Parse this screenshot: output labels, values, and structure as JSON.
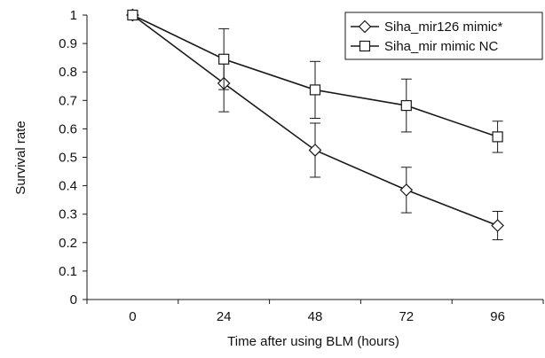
{
  "chart_data": {
    "type": "line",
    "title": "",
    "xlabel": "Time after using BLM (hours)",
    "ylabel": "Survival rate",
    "x": [
      0,
      24,
      48,
      72,
      96
    ],
    "x_tick_labels": [
      "0",
      "24",
      "48",
      "72",
      "96"
    ],
    "ylim": [
      0,
      1
    ],
    "y_ticks": [
      0,
      0.1,
      0.2,
      0.3,
      0.4,
      0.5,
      0.6,
      0.7,
      0.8,
      0.9,
      1
    ],
    "y_tick_labels": [
      "0",
      "0.1",
      "0.2",
      "0.3",
      "0.4",
      "0.5",
      "0.6",
      "0.7",
      "0.8",
      "0.9",
      "1"
    ],
    "grid": false,
    "legend_position": "top-right",
    "series": [
      {
        "name": "Siha_mir126 mimic*",
        "marker": "diamond",
        "values": [
          1.0,
          0.76,
          0.525,
          0.385,
          0.26
        ],
        "error": [
          0,
          0.1,
          0.095,
          0.08,
          0.05
        ]
      },
      {
        "name": "Siha_mir mimic NC",
        "marker": "square",
        "values": [
          1.0,
          0.845,
          0.737,
          0.682,
          0.572
        ],
        "error": [
          0,
          0.107,
          0.1,
          0.093,
          0.055
        ]
      }
    ]
  },
  "colors": {
    "line": "#1a1a1a",
    "marker_fill": "#ffffff",
    "background": "#ffffff"
  }
}
